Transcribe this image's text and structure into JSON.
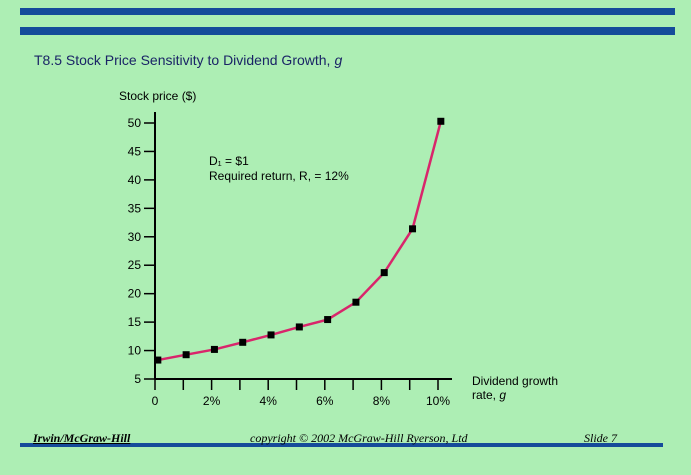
{
  "slide": {
    "title_main": "T8.5   Stock Price Sensitivity to Dividend Growth,",
    "title_var": "g",
    "footer_left": "Irwin/McGraw-Hill",
    "footer_mid": "copyright © 2002 McGraw-Hill Ryerson, Ltd",
    "footer_right": "Slide 7",
    "colors": {
      "background": "#adeeb4",
      "bar": "#154b9a",
      "line": "#d9256b",
      "marker": "#000000",
      "title": "#1a2466"
    }
  },
  "chart_data": {
    "type": "line",
    "ylabel": "Stock price ($)",
    "xlabel_line1": "Dividend growth",
    "xlabel_line2": "rate,",
    "xlabel_var": "g",
    "annotation_line1": "D₁ = $1",
    "annotation_line2": "Required return, R, = 12%",
    "x": [
      0,
      1,
      2,
      3,
      4,
      5,
      6,
      7,
      8,
      9,
      10
    ],
    "y": [
      8.33,
      9.27,
      10.2,
      11.45,
      12.75,
      14.15,
      15.45,
      18.5,
      23.7,
      31.4,
      50.3
    ],
    "xlim": [
      0,
      10
    ],
    "ylim": [
      5,
      50
    ],
    "y_ticks": [
      5,
      10,
      15,
      20,
      25,
      30,
      35,
      40,
      45,
      50
    ],
    "y_tick_labels": [
      "5",
      "10",
      "15",
      "20",
      "25",
      "30",
      "35",
      "40",
      "45",
      "50"
    ],
    "x_ticks": [
      0,
      1,
      2,
      3,
      4,
      5,
      6,
      7,
      8,
      9,
      10
    ],
    "x_tick_labels": [
      "0",
      "",
      "2%",
      "",
      "4%",
      "",
      "6%",
      "",
      "8%",
      "",
      "10%"
    ],
    "grid": false
  }
}
